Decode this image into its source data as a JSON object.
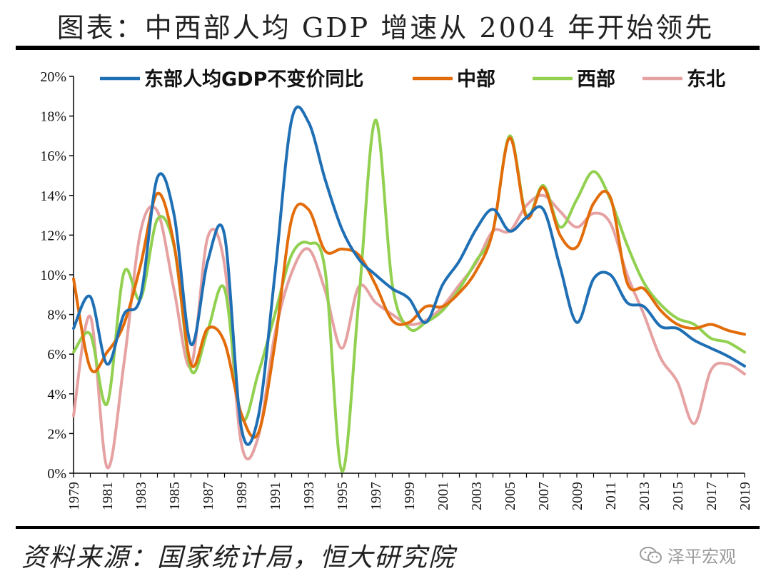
{
  "title": "图表：中西部人均 GDP 增速从 2004 年开始领先",
  "source": "资料来源：国家统计局，恒大研究院",
  "watermark": {
    "text": "泽平宏观",
    "icon": "wechat-icon"
  },
  "chart_data": {
    "type": "line",
    "title": "图表：中西部人均 GDP 增速从 2004 年开始领先",
    "xlabel": "",
    "ylabel": "",
    "ylim": [
      0,
      20
    ],
    "yticks": [
      "0%",
      "2%",
      "4%",
      "6%",
      "8%",
      "10%",
      "12%",
      "14%",
      "16%",
      "18%",
      "20%"
    ],
    "x": [
      1979,
      1980,
      1981,
      1982,
      1983,
      1984,
      1985,
      1986,
      1987,
      1988,
      1989,
      1990,
      1991,
      1992,
      1993,
      1994,
      1995,
      1996,
      1997,
      1998,
      1999,
      2000,
      2001,
      2002,
      2003,
      2004,
      2005,
      2006,
      2007,
      2008,
      2009,
      2010,
      2011,
      2012,
      2013,
      2014,
      2015,
      2016,
      2017,
      2018,
      2019
    ],
    "xticks": [
      1979,
      1981,
      1983,
      1985,
      1987,
      1989,
      1991,
      1993,
      1995,
      1997,
      1999,
      2001,
      2003,
      2005,
      2007,
      2009,
      2011,
      2013,
      2015,
      2017,
      2019
    ],
    "legend_position": "top",
    "grid": false,
    "series": [
      {
        "name": "东部人均GDP不变价同比",
        "color": "#1f6fb5",
        "values": [
          7.3,
          8.9,
          5.5,
          8.0,
          8.9,
          14.9,
          13.0,
          6.5,
          10.7,
          12.0,
          2.3,
          2.8,
          10.0,
          17.8,
          17.7,
          14.8,
          12.3,
          10.8,
          10.0,
          9.3,
          8.8,
          7.6,
          9.5,
          10.7,
          12.3,
          13.3,
          12.2,
          12.9,
          13.3,
          10.4,
          7.6,
          9.8,
          10.0,
          8.6,
          8.4,
          7.4,
          7.3,
          6.7,
          6.3,
          5.9,
          5.4
        ]
      },
      {
        "name": "中部",
        "color": "#e36c0a",
        "values": [
          9.8,
          5.3,
          6.1,
          7.5,
          10.5,
          14.1,
          11.5,
          5.5,
          7.3,
          6.6,
          3.0,
          2.0,
          6.5,
          12.8,
          13.3,
          11.2,
          11.3,
          11.0,
          9.5,
          7.7,
          7.6,
          8.4,
          8.4,
          9.1,
          10.2,
          12.2,
          16.9,
          12.9,
          14.4,
          12.0,
          11.4,
          13.6,
          13.9,
          9.6,
          9.3,
          8.2,
          7.5,
          7.3,
          7.5,
          7.2,
          7.0
        ]
      },
      {
        "name": "西部",
        "color": "#92d050",
        "values": [
          6.1,
          7.0,
          3.5,
          10.1,
          8.8,
          12.8,
          11.4,
          5.2,
          7.2,
          9.3,
          2.8,
          5.0,
          8.0,
          11.0,
          11.6,
          10.2,
          0.1,
          8.7,
          17.8,
          9.5,
          7.3,
          7.6,
          8.2,
          9.3,
          10.7,
          12.2,
          17.0,
          13.0,
          14.5,
          12.4,
          13.8,
          15.2,
          13.8,
          11.5,
          9.6,
          8.5,
          7.8,
          7.5,
          6.8,
          6.6,
          6.1
        ]
      },
      {
        "name": "东北",
        "color": "#e6a2a2",
        "values": [
          2.9,
          7.9,
          0.3,
          5.5,
          12.2,
          13.2,
          9.2,
          5.4,
          11.9,
          10.5,
          1.5,
          1.8,
          7.0,
          10.1,
          11.3,
          9.2,
          6.3,
          9.4,
          8.6,
          8.0,
          7.5,
          7.7,
          8.4,
          9.5,
          10.6,
          12.2,
          12.2,
          13.5,
          14.0,
          13.2,
          12.4,
          13.1,
          12.6,
          10.0,
          8.0,
          5.8,
          4.6,
          2.5,
          5.2,
          5.5,
          5.0
        ]
      }
    ]
  }
}
